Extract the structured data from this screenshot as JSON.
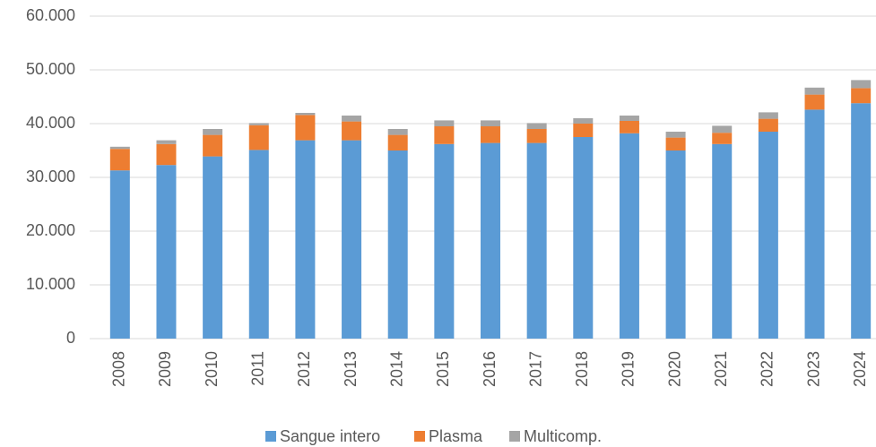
{
  "chart_data": {
    "type": "stacked_bar",
    "categories": [
      "2008",
      "2009",
      "2010",
      "2011",
      "2012",
      "2013",
      "2014",
      "2015",
      "2016",
      "2017",
      "2018",
      "2019",
      "2020",
      "2021",
      "2022",
      "2023",
      "2024"
    ],
    "series": [
      {
        "name": "Sangue intero",
        "color": "#5b9bd5",
        "values": [
          31300,
          32300,
          33900,
          35100,
          36900,
          36900,
          35000,
          36200,
          36400,
          36400,
          37500,
          38200,
          35000,
          36200,
          38500,
          42600,
          43800
        ]
      },
      {
        "name": "Plasma",
        "color": "#ed7d31",
        "values": [
          4000,
          3900,
          4000,
          4600,
          4700,
          3500,
          2900,
          3300,
          3100,
          2600,
          2500,
          2300,
          2400,
          2100,
          2400,
          2800,
          2800
        ]
      },
      {
        "name": "Multicomp.",
        "color": "#a5a5a5",
        "values": [
          400,
          700,
          1100,
          400,
          400,
          1100,
          1100,
          1100,
          1100,
          1100,
          1000,
          1000,
          1100,
          1300,
          1200,
          1300,
          1500
        ]
      }
    ],
    "ylim": [
      0,
      60000
    ],
    "yticks": [
      0,
      {
        "value": 10000,
        "label": "10.000"
      },
      {
        "value": 20000,
        "label": "20.000"
      },
      {
        "value": 30000,
        "label": "30.000"
      },
      {
        "value": 40000,
        "label": "40.000"
      },
      {
        "value": 50000,
        "label": "50.000"
      },
      {
        "value": 60000,
        "label": "60.000"
      }
    ],
    "grid": true,
    "legend": "bottom"
  }
}
